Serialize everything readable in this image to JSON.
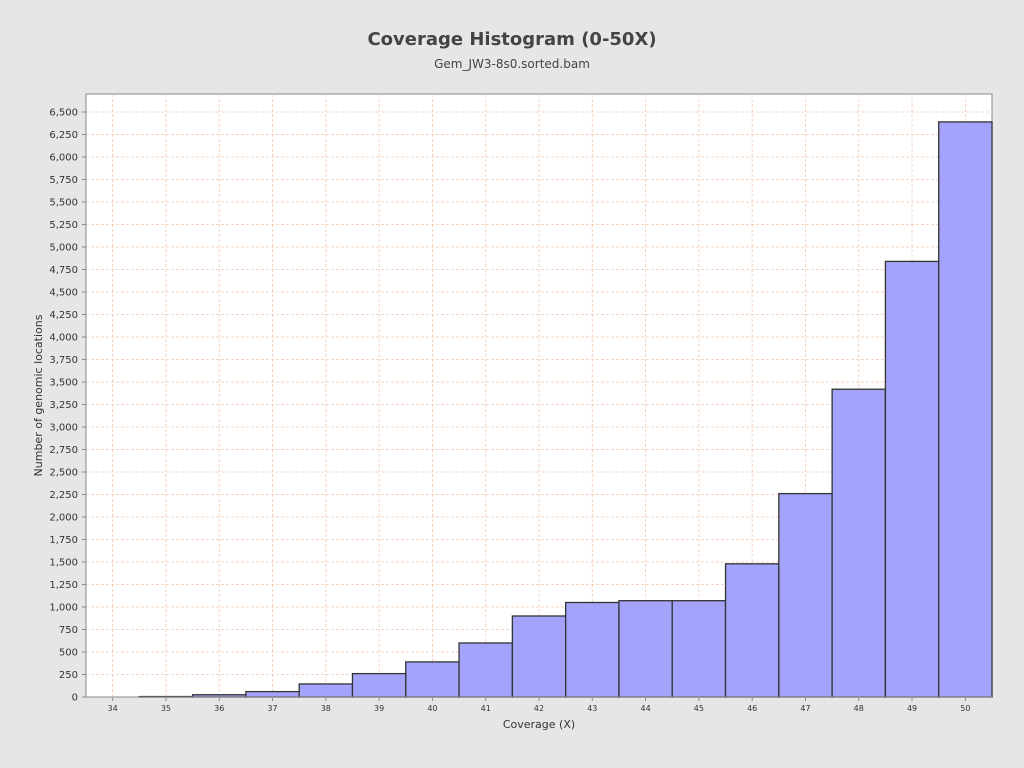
{
  "chart_data": {
    "type": "bar",
    "title": "Coverage Histogram (0-50X)",
    "subtitle": "Gem_JW3-8s0.sorted.bam",
    "xlabel": "Coverage (X)",
    "ylabel": "Number of genomic locations",
    "categories": [
      "34",
      "35",
      "36",
      "37",
      "38",
      "39",
      "40",
      "41",
      "42",
      "43",
      "44",
      "45",
      "46",
      "47",
      "48",
      "49",
      "50"
    ],
    "values": [
      0,
      5,
      25,
      60,
      145,
      260,
      390,
      600,
      900,
      1050,
      1070,
      1070,
      1480,
      2260,
      3420,
      4840,
      6390
    ],
    "ylim": [
      0,
      6700
    ],
    "yticks": [
      0,
      250,
      500,
      750,
      1000,
      1250,
      1500,
      1750,
      2000,
      2250,
      2500,
      2750,
      3000,
      3250,
      3500,
      3750,
      4000,
      4250,
      4500,
      4750,
      5000,
      5250,
      5500,
      5750,
      6000,
      6250,
      6500
    ],
    "ytick_labels": [
      "0",
      "250",
      "500",
      "750",
      "1,000",
      "1,250",
      "1,500",
      "1,750",
      "2,000",
      "2,250",
      "2,500",
      "2,750",
      "3,000",
      "3,250",
      "3,500",
      "3,750",
      "4,000",
      "4,250",
      "4,500",
      "4,750",
      "5,000",
      "5,250",
      "5,500",
      "5,750",
      "6,000",
      "6,250",
      "6,500"
    ],
    "grid": true,
    "legend": "none",
    "colors": {
      "bar_fill": "#a3a3fb",
      "bar_stroke": "#333333",
      "grid": "#f4c9ae",
      "plot_background": "#ffffff",
      "page_background": "#e6e6e6"
    }
  }
}
